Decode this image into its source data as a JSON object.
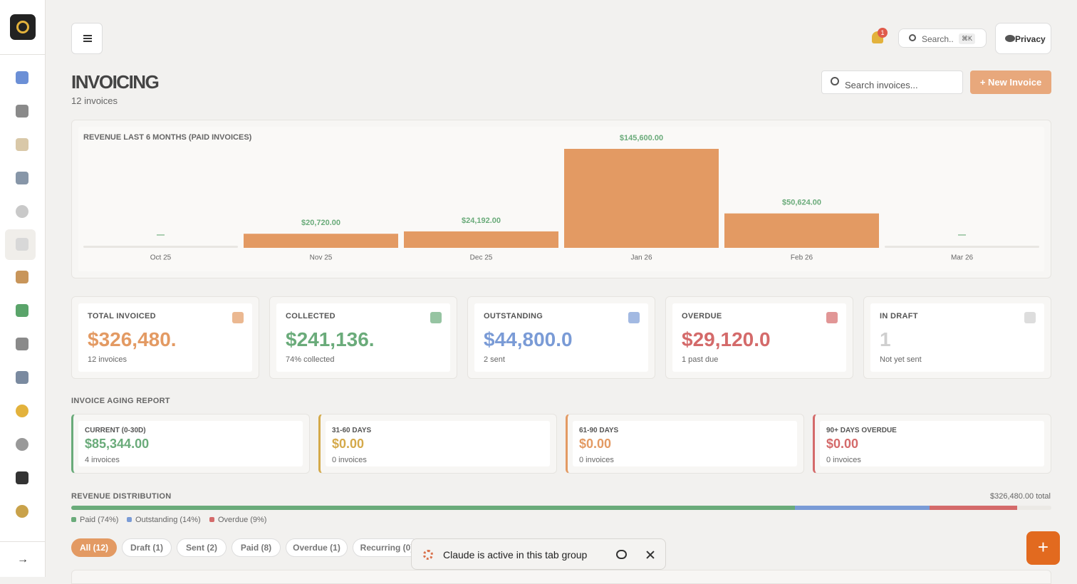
{
  "sidebar": {
    "collapse": "→"
  },
  "header": {
    "notifications": "1",
    "search_placeholder": "Search..",
    "search_shortcut": "⌘K",
    "privacy": "Privacy"
  },
  "page": {
    "title": "INVOICING",
    "subtitle": "12 invoices",
    "search_placeholder": "Search invoices...",
    "new_invoice": "+ New Invoice"
  },
  "chart_data": {
    "type": "bar",
    "title": "REVENUE LAST 6 MONTHS (PAID INVOICES)",
    "categories": [
      "Oct 25",
      "Nov 25",
      "Dec 25",
      "Jan 26",
      "Feb 26",
      "Mar 26"
    ],
    "values": [
      null,
      20720,
      24192,
      145600,
      50624,
      null
    ],
    "value_labels": [
      "—",
      "$20,720.00",
      "$24,192.00",
      "$145,600.00",
      "$50,624.00",
      "—"
    ],
    "color": "#e39a63",
    "label_color": "#6aab7a"
  },
  "stats": [
    {
      "title": "TOTAL INVOICED",
      "value": "$326,480.00",
      "note": "12 invoices",
      "color": "#e39a63"
    },
    {
      "title": "COLLECTED",
      "value": "$241,136.00",
      "note": "74% collected",
      "color": "#6aab7a"
    },
    {
      "title": "OUTSTANDING",
      "value": "$44,800.00",
      "note": "2 sent",
      "color": "#7a9bd6"
    },
    {
      "title": "OVERDUE",
      "value": "$29,120.00",
      "note": "1 past due",
      "color": "#d46a6a"
    },
    {
      "title": "IN DRAFT",
      "value": "1",
      "note": "Not yet sent",
      "color": "#cfcfcf"
    }
  ],
  "aging": {
    "title": "INVOICE AGING REPORT",
    "buckets": [
      {
        "title": "CURRENT (0-30D)",
        "amount": "$85,344.00",
        "count": "4 invoices",
        "color": "#6aab7a"
      },
      {
        "title": "31-60 DAYS",
        "amount": "$0.00",
        "count": "0 invoices",
        "color": "#d4a94a"
      },
      {
        "title": "61-90 DAYS",
        "amount": "$0.00",
        "count": "0 invoices",
        "color": "#e39a63"
      },
      {
        "title": "90+ DAYS OVERDUE",
        "amount": "$0.00",
        "count": "0 invoices",
        "color": "#d46a6a"
      }
    ]
  },
  "distribution": {
    "title": "REVENUE DISTRIBUTION",
    "total": {
      "value": 326480,
      "label": "$326,480.00"
    },
    "total_suffix": "total",
    "segments": [
      {
        "label": "Paid (74%)",
        "value": 241136,
        "color": "#6aab7a"
      },
      {
        "label": "Outstanding (14%)",
        "value": 44800,
        "color": "#7a9bd6"
      },
      {
        "label": "Overdue (9%)",
        "value": 29120,
        "color": "#d46a6a"
      }
    ]
  },
  "tabs": [
    "All (12)",
    "Draft (1)",
    "Sent (2)",
    "Paid (8)",
    "Overdue (1)",
    "Recurring (0)"
  ],
  "overlay": {
    "message": "Claude is active in this tab group"
  },
  "fab": "+"
}
